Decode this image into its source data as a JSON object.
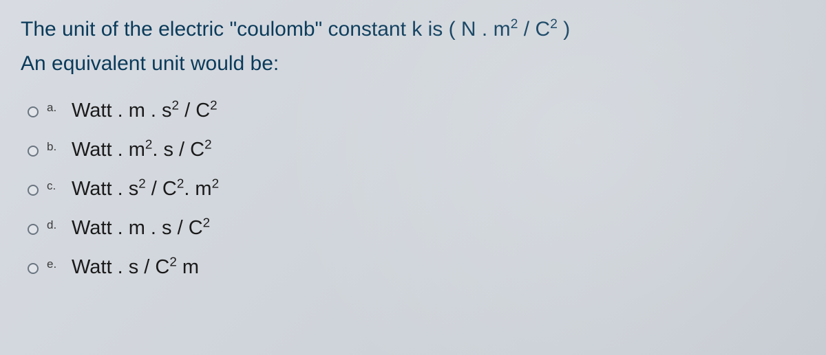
{
  "question": {
    "line1_pre": "The unit of the electric \"coulomb\" constant k is ( N . m",
    "line1_sup1": "2",
    "line1_mid": " / C",
    "line1_sup2": "2",
    "line1_post": " )",
    "line2": "An equivalent unit would be:"
  },
  "options": [
    {
      "letter": "a.",
      "parts": [
        "Watt . m . s",
        "2",
        " / C",
        "2",
        ""
      ]
    },
    {
      "letter": "b.",
      "parts": [
        "Watt . m",
        "2",
        ". s / C",
        "2",
        ""
      ]
    },
    {
      "letter": "c.",
      "parts": [
        "Watt . s",
        "2",
        " / C",
        "2",
        ". m",
        "2",
        ""
      ]
    },
    {
      "letter": "d.",
      "parts": [
        "Watt . m . s / C",
        "2",
        ""
      ]
    },
    {
      "letter": "e.",
      "parts": [
        "Watt . s / C",
        "2",
        " m"
      ]
    }
  ],
  "styling": {
    "background_colors": [
      "#d8dce2",
      "#d0d5db",
      "#c8cdd4"
    ],
    "question_color": "#0a3a5a",
    "question_fontsize": 30,
    "option_color": "#1a1a1a",
    "option_fontsize": 29,
    "letter_fontsize": 17,
    "letter_color": "#3a3a3a",
    "radio_border_color": "#6a7580",
    "radio_size": 16,
    "font_family": "Arial"
  }
}
